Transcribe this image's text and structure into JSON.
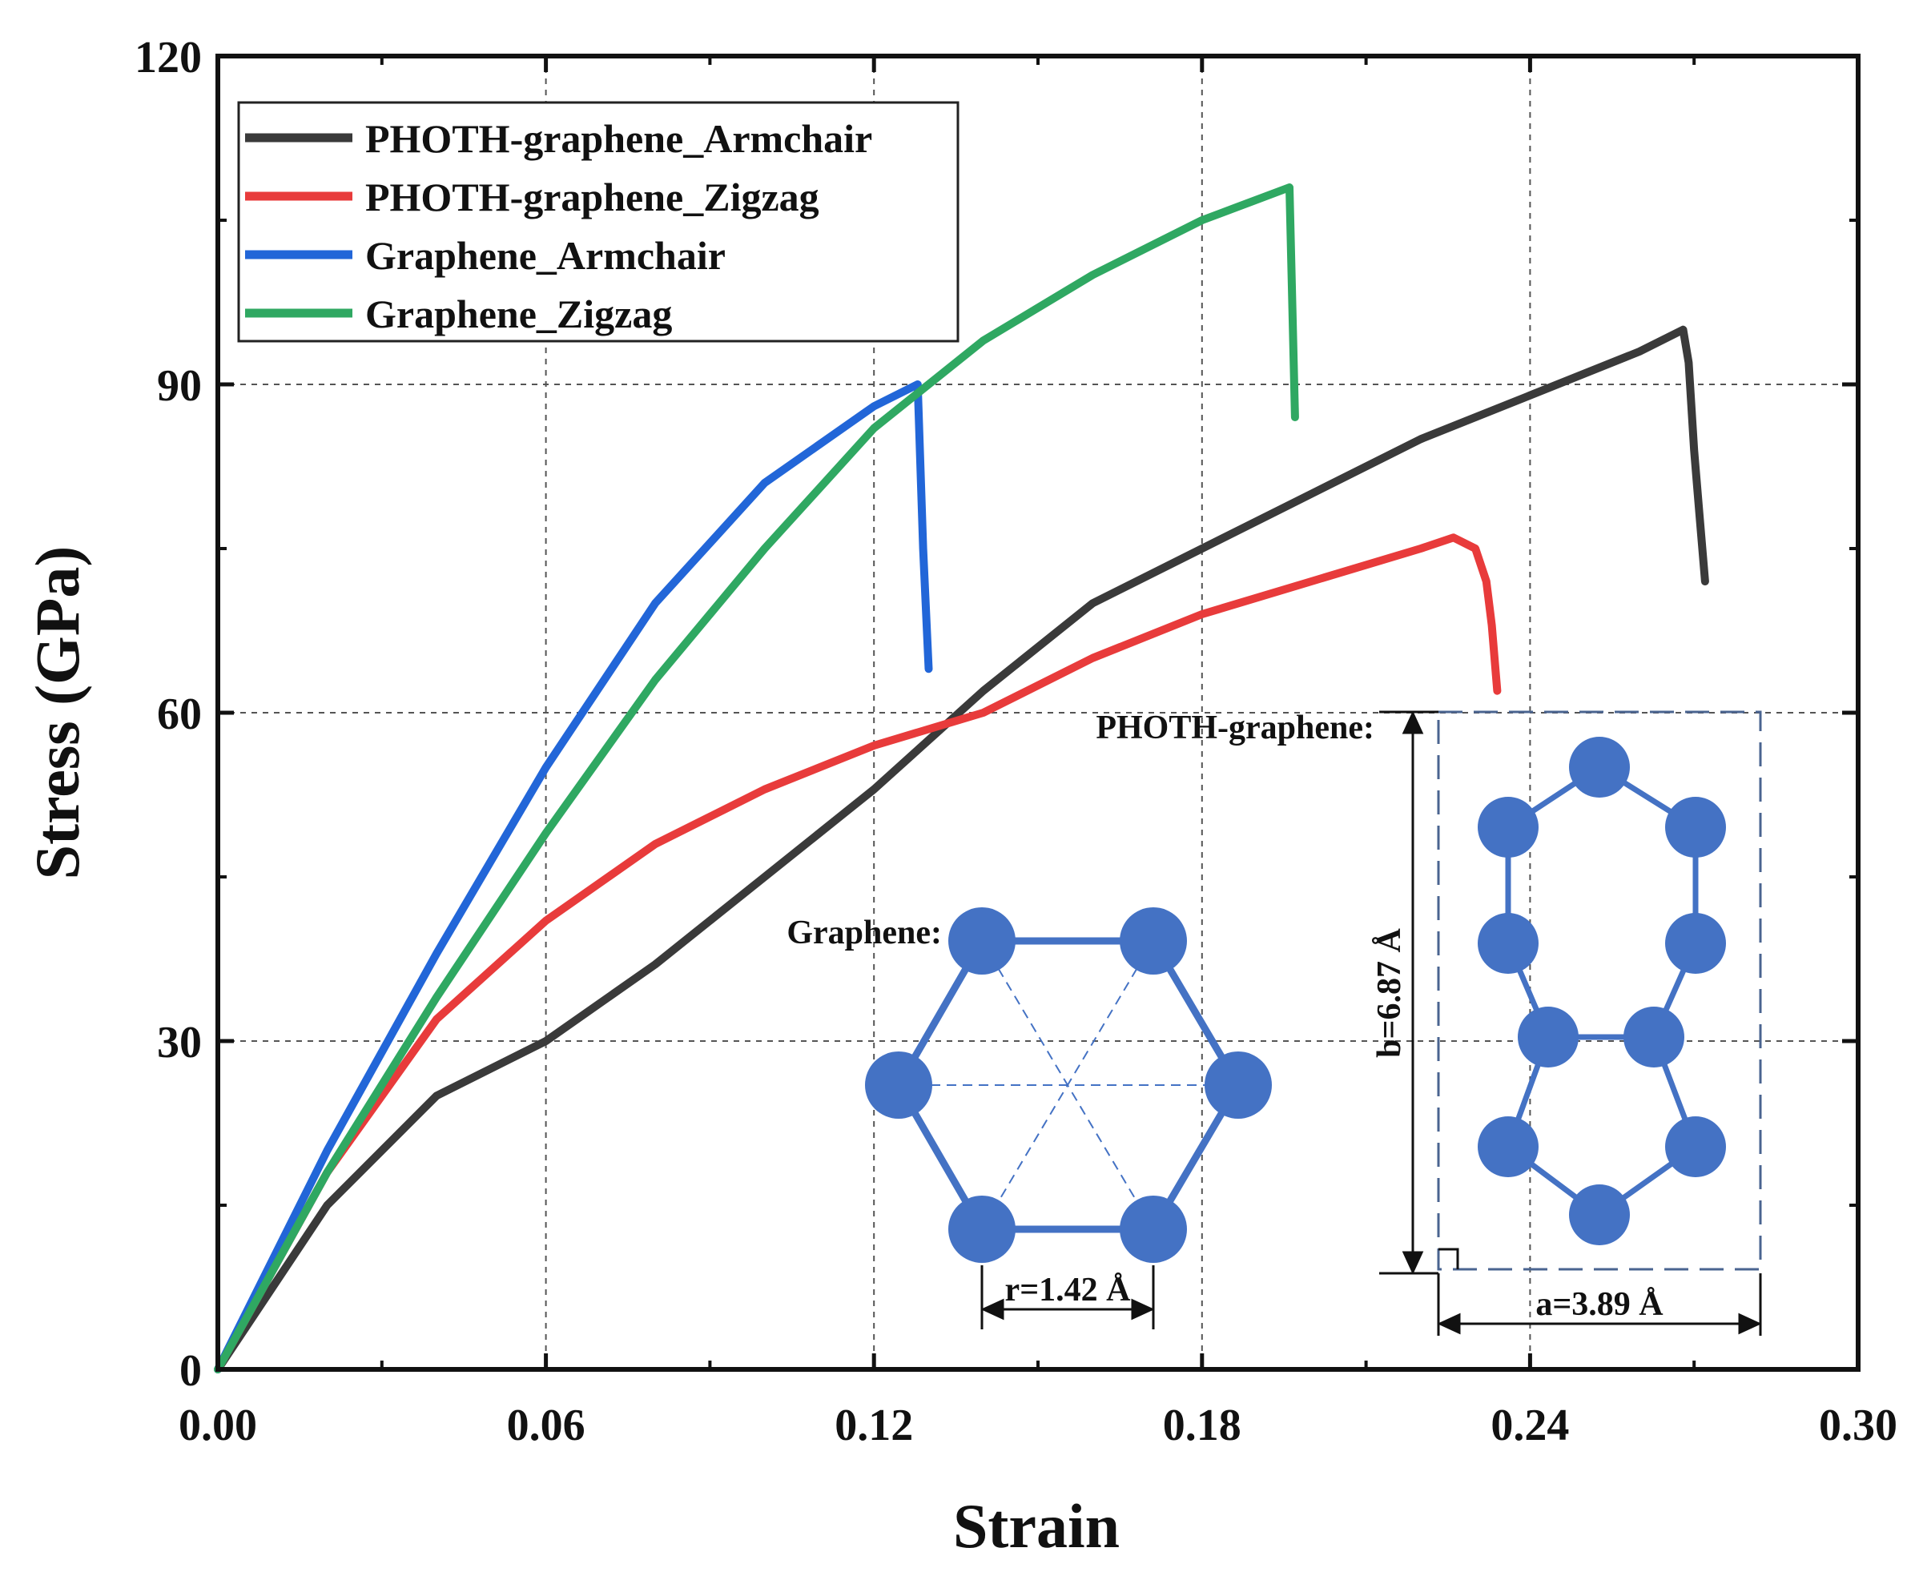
{
  "chart_data": {
    "type": "line",
    "title": "",
    "xlabel": "Strain",
    "ylabel": "Stress (GPa)",
    "xlim": [
      0,
      0.3
    ],
    "ylim": [
      0,
      120
    ],
    "x_ticks": [
      0,
      0.06,
      0.12,
      0.18,
      0.24,
      0.3
    ],
    "x_tick_labels": [
      "0.00",
      "0.06",
      "0.12",
      "0.18",
      "0.24",
      "0.30"
    ],
    "y_ticks": [
      0,
      30,
      60,
      90,
      120
    ],
    "y_tick_labels": [
      "0",
      "30",
      "60",
      "90",
      "120"
    ],
    "grid": true,
    "legend_position": "top-left",
    "series": [
      {
        "name": "PHOTH-graphene_Armchair",
        "color": "#3a3a3a",
        "x": [
          0,
          0.02,
          0.04,
          0.06,
          0.08,
          0.1,
          0.12,
          0.14,
          0.16,
          0.18,
          0.2,
          0.22,
          0.24,
          0.26,
          0.268,
          0.269,
          0.27,
          0.271,
          0.272
        ],
        "y": [
          0,
          15,
          25,
          30,
          37,
          45,
          53,
          62,
          70,
          75,
          80,
          85,
          89,
          93,
          95,
          92,
          84,
          78,
          72
        ]
      },
      {
        "name": "PHOTH-graphene_Zigzag",
        "color": "#e83b3b",
        "x": [
          0,
          0.02,
          0.04,
          0.06,
          0.08,
          0.1,
          0.12,
          0.14,
          0.16,
          0.18,
          0.2,
          0.22,
          0.226,
          0.23,
          0.232,
          0.233,
          0.234
        ],
        "y": [
          0,
          18,
          32,
          41,
          48,
          53,
          57,
          60,
          65,
          69,
          72,
          75,
          76,
          75,
          72,
          68,
          62
        ]
      },
      {
        "name": "Graphene_Armchair",
        "color": "#2266d8",
        "x": [
          0,
          0.02,
          0.04,
          0.06,
          0.08,
          0.1,
          0.12,
          0.128,
          0.129,
          0.13
        ],
        "y": [
          0,
          20,
          38,
          55,
          70,
          81,
          88,
          90,
          75,
          64
        ]
      },
      {
        "name": "Graphene_Zigzag",
        "color": "#2fa862",
        "x": [
          0,
          0.02,
          0.04,
          0.06,
          0.08,
          0.1,
          0.12,
          0.14,
          0.16,
          0.18,
          0.196,
          0.197
        ],
        "y": [
          0,
          18,
          34,
          49,
          63,
          75,
          86,
          94,
          100,
          105,
          108,
          87
        ]
      }
    ],
    "annotations": {
      "graphene_label": "Graphene:",
      "graphene_bond": "r=1.42 Å",
      "photh_label": "PHOTH-graphene:",
      "photh_b": "b=6.87 Å",
      "photh_a": "a=3.89 Å"
    },
    "atom_color": "#4472c4",
    "axis_color": "#111111"
  }
}
